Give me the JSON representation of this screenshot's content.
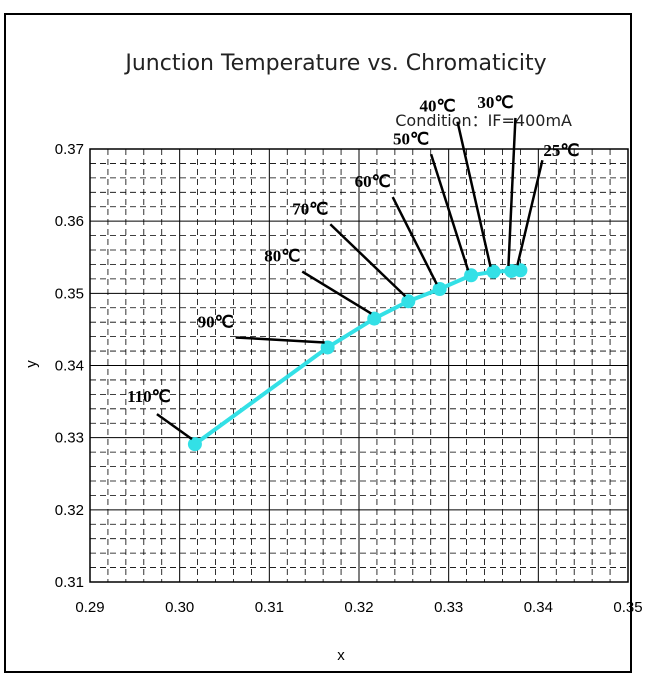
{
  "chart_data": {
    "type": "line",
    "title": "Junction Temperature vs. Chromaticity",
    "condition": "Condition：IF=400mA",
    "xlabel": "x",
    "ylabel": "y",
    "xlim": [
      0.29,
      0.35
    ],
    "ylim": [
      0.31,
      0.37
    ],
    "xticks": [
      "0.29",
      "0.30",
      "0.31",
      "0.32",
      "0.33",
      "0.34",
      "0.35"
    ],
    "yticks": [
      "0.31",
      "0.32",
      "0.33",
      "0.34",
      "0.35",
      "0.36",
      "0.37"
    ],
    "grid": true,
    "series": [
      {
        "color": "#33e0e6",
        "points": [
          {
            "x": 0.3017,
            "y": 0.3291,
            "label": "110℃"
          },
          {
            "x": 0.3165,
            "y": 0.3425,
            "label": "90℃"
          },
          {
            "x": 0.3217,
            "y": 0.3465,
            "label": "80℃"
          },
          {
            "x": 0.3255,
            "y": 0.3489,
            "label": "70℃"
          },
          {
            "x": 0.329,
            "y": 0.3506,
            "label": "60℃"
          },
          {
            "x": 0.3325,
            "y": 0.3525,
            "label": "50℃"
          },
          {
            "x": 0.335,
            "y": 0.353,
            "label": "40℃"
          },
          {
            "x": 0.337,
            "y": 0.3531,
            "label": "30℃"
          },
          {
            "x": 0.338,
            "y": 0.3532,
            "label": "25℃"
          }
        ]
      }
    ]
  }
}
